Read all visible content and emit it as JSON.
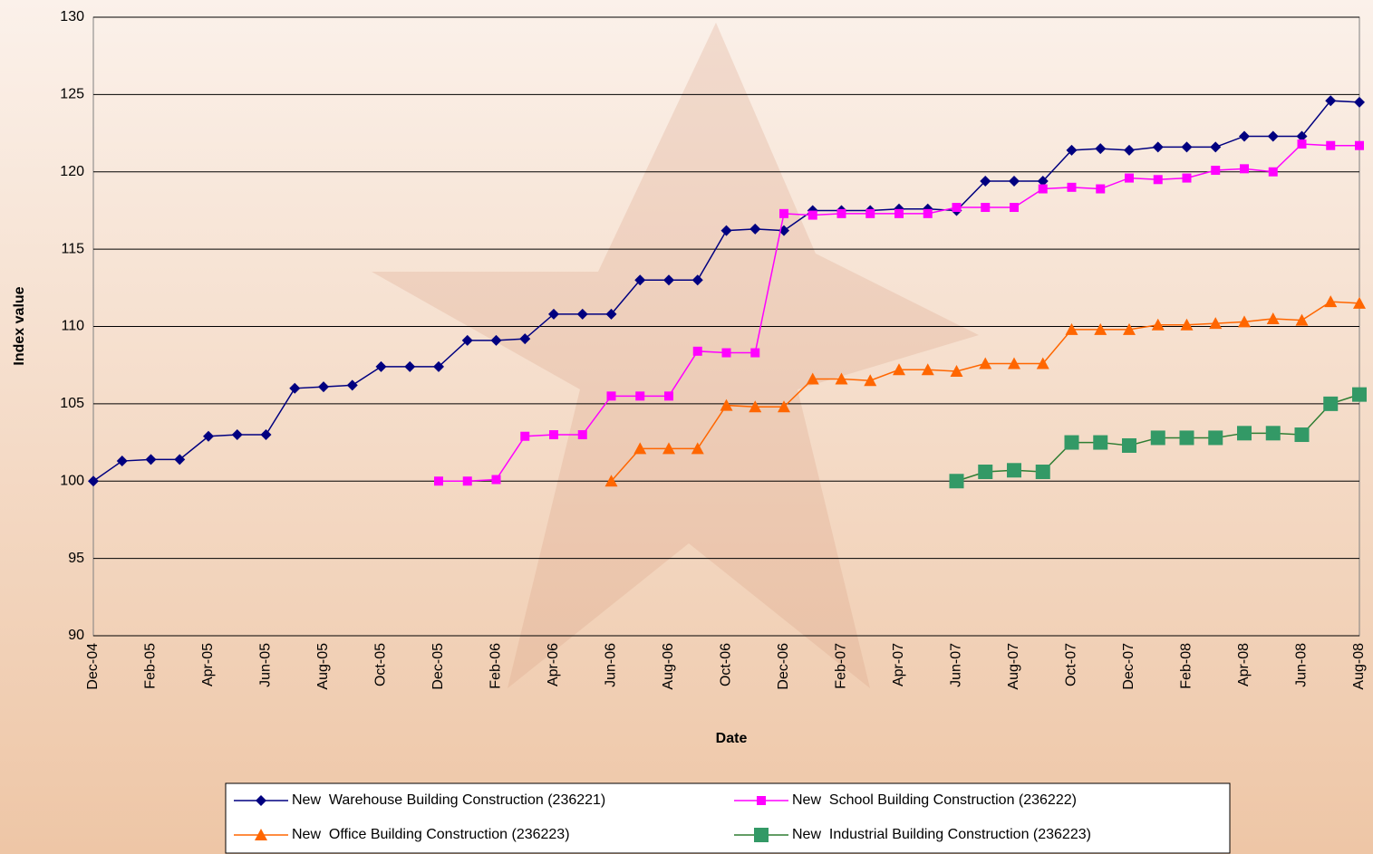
{
  "chart_data": {
    "type": "line",
    "x_label": "Date",
    "y_label": "Index value",
    "categories": [
      "Dec-04",
      null,
      "Feb-05",
      null,
      "Apr-05",
      null,
      "Jun-05",
      null,
      "Aug-05",
      null,
      "Oct-05",
      null,
      "Dec-05",
      null,
      "Feb-06",
      null,
      "Apr-06",
      null,
      "Jun-06",
      null,
      "Aug-06",
      null,
      "Oct-06",
      null,
      "Dec-06",
      null,
      "Feb-07",
      null,
      "Apr-07",
      null,
      "Jun-07",
      null,
      "Aug-07",
      null,
      "Oct-07",
      null,
      "Dec-07",
      null,
      "Feb-08",
      null,
      "Apr-08",
      null,
      "Jun-08",
      null,
      "Aug-08"
    ],
    "ylim": [
      90,
      130
    ],
    "yticks": [
      90,
      95,
      100,
      105,
      110,
      115,
      120,
      125,
      130
    ],
    "grid": true,
    "series": [
      {
        "name": "New  Warehouse Building Construction (236221)",
        "color": "#000080",
        "marker": "diamond",
        "values": [
          100,
          101.3,
          101.4,
          101.4,
          102.9,
          103.0,
          103.0,
          106.0,
          106.1,
          106.2,
          107.4,
          107.4,
          107.4,
          109.1,
          109.1,
          109.2,
          110.8,
          110.8,
          110.8,
          113.0,
          113.0,
          113.0,
          116.2,
          116.3,
          116.2,
          117.5,
          117.5,
          117.5,
          117.6,
          117.6,
          117.5,
          119.4,
          119.4,
          119.4,
          121.4,
          121.5,
          121.4,
          121.6,
          121.6,
          121.6,
          122.3,
          122.3,
          122.3,
          124.6,
          124.5
        ]
      },
      {
        "name": "New  School Building Construction (236222)",
        "color": "#ff00ff",
        "marker": "square",
        "values": [
          null,
          null,
          null,
          null,
          null,
          null,
          null,
          null,
          null,
          null,
          null,
          null,
          100,
          100,
          100.1,
          102.9,
          103.0,
          103.0,
          105.5,
          105.5,
          105.5,
          108.4,
          108.3,
          108.3,
          117.3,
          117.2,
          117.3,
          117.3,
          117.3,
          117.3,
          117.7,
          117.7,
          117.7,
          118.9,
          119.0,
          118.9,
          119.6,
          119.5,
          119.6,
          120.1,
          120.2,
          120.0,
          121.8,
          121.7,
          121.7
        ]
      },
      {
        "name": "New  Office Building Construction (236223)",
        "color": "#ff6600",
        "marker": "triangle",
        "values": [
          null,
          null,
          null,
          null,
          null,
          null,
          null,
          null,
          null,
          null,
          null,
          null,
          null,
          null,
          null,
          null,
          null,
          null,
          100,
          102.1,
          102.1,
          102.1,
          104.9,
          104.8,
          104.8,
          106.6,
          106.6,
          106.5,
          107.2,
          107.2,
          107.1,
          107.6,
          107.6,
          107.6,
          109.8,
          109.8,
          109.8,
          110.1,
          110.1,
          110.2,
          110.3,
          110.5,
          110.4,
          111.6,
          111.5
        ]
      },
      {
        "name": "New  Industrial Building Construction (236223)",
        "color": "#339966",
        "marker": "bigsquare",
        "values": [
          null,
          null,
          null,
          null,
          null,
          null,
          null,
          null,
          null,
          null,
          null,
          null,
          null,
          null,
          null,
          null,
          null,
          null,
          null,
          null,
          null,
          null,
          null,
          null,
          null,
          null,
          null,
          null,
          null,
          null,
          100,
          100.6,
          100.7,
          100.6,
          102.5,
          102.5,
          102.3,
          102.8,
          102.8,
          102.8,
          103.1,
          103.1,
          103.0,
          105.0,
          105.6
        ]
      }
    ]
  }
}
